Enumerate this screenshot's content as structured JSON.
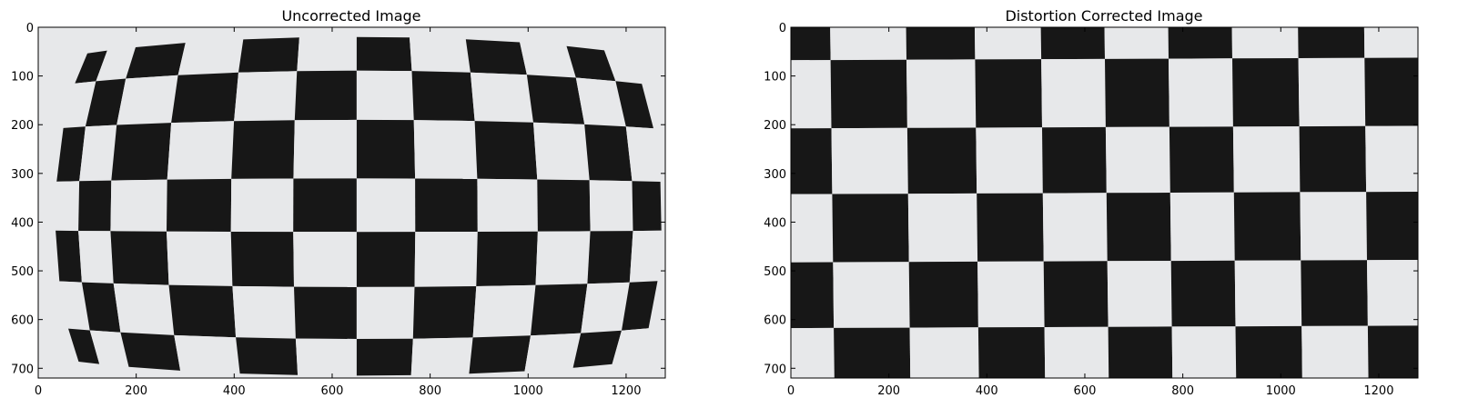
{
  "figure": {
    "panels": [
      {
        "title": "Uncorrected Image",
        "image": "checkerboard-photo-with-lens-distortion",
        "x_ticks": [
          "0",
          "200",
          "400",
          "600",
          "800",
          "1000",
          "1200"
        ],
        "y_ticks": [
          "0",
          "100",
          "200",
          "300",
          "400",
          "500",
          "600",
          "700"
        ]
      },
      {
        "title": "Distortion Corrected Image",
        "image": "checkerboard-photo-undistorted",
        "x_ticks": [
          "0",
          "200",
          "400",
          "600",
          "800",
          "1000",
          "1200"
        ],
        "y_ticks": [
          "0",
          "100",
          "200",
          "300",
          "400",
          "500",
          "600",
          "700"
        ]
      }
    ]
  },
  "colors": {
    "paper": "#e7e8ea",
    "ink": "#171717",
    "frame": "#000000"
  }
}
